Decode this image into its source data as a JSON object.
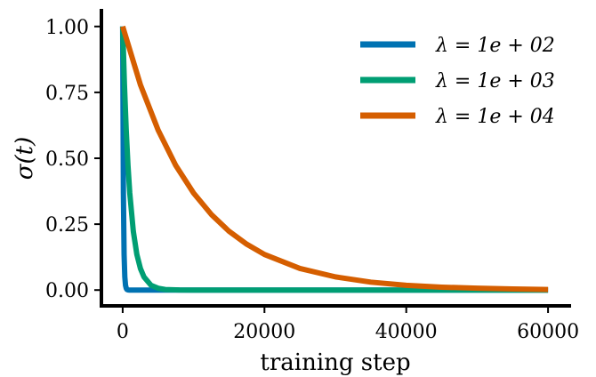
{
  "chart_data": {
    "type": "line",
    "xlabel": "training step",
    "ylabel": "σ(t)",
    "xlim": [
      -3000,
      63000
    ],
    "ylim": [
      -0.06,
      1.06
    ],
    "x_ticks": [
      0,
      20000,
      40000,
      60000
    ],
    "x_tick_labels": [
      "0",
      "20000",
      "40000",
      "60000"
    ],
    "y_ticks": [
      0,
      0.25,
      0.5,
      0.75,
      1.0
    ],
    "y_tick_labels": [
      "0.00",
      "0.25",
      "0.50",
      "0.75",
      "1.00"
    ],
    "grid": false,
    "legend_position": "top-right",
    "series": [
      {
        "name": "λ = 1e + 02",
        "color": "#0072b2",
        "x": [
          0,
          100,
          200,
          300,
          400,
          500,
          600,
          800,
          1000,
          1500,
          2000,
          5000,
          20000,
          40000,
          60000
        ],
        "y": [
          1.0,
          0.368,
          0.135,
          0.05,
          0.018,
          0.007,
          0.002,
          0.0003,
          0.0,
          0.0,
          0.0,
          0.0,
          0.0,
          0.0,
          0.0
        ]
      },
      {
        "name": "λ = 1e + 03",
        "color": "#009e73",
        "x": [
          0,
          250,
          500,
          750,
          1000,
          1500,
          2000,
          2500,
          3000,
          4000,
          5000,
          6000,
          8000,
          10000,
          20000,
          40000,
          60000
        ],
        "y": [
          1.0,
          0.779,
          0.607,
          0.472,
          0.368,
          0.223,
          0.135,
          0.082,
          0.05,
          0.018,
          0.007,
          0.002,
          0.0003,
          0.0,
          0.0,
          0.0,
          0.0
        ]
      },
      {
        "name": "λ = 1e + 04",
        "color": "#d55e00",
        "x": [
          0,
          2500,
          5000,
          7500,
          10000,
          12500,
          15000,
          17500,
          20000,
          25000,
          30000,
          35000,
          40000,
          45000,
          50000,
          55000,
          60000
        ],
        "y": [
          1.0,
          0.779,
          0.607,
          0.472,
          0.368,
          0.287,
          0.223,
          0.174,
          0.135,
          0.082,
          0.05,
          0.03,
          0.018,
          0.011,
          0.007,
          0.004,
          0.002
        ]
      }
    ]
  }
}
